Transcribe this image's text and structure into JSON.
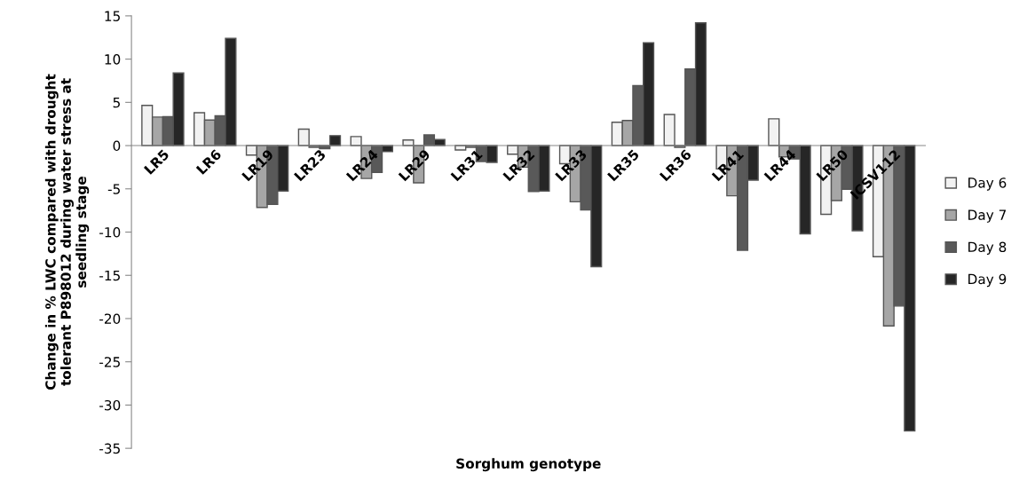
{
  "chart_data": {
    "type": "bar",
    "xlabel": "Sorghum genotype",
    "ylabel": "Change in % LWC compared with drought\ntolerant P898012 during water stress at\nseedling stage",
    "categories": [
      "LR5",
      "LR6",
      "LR19",
      "LR23",
      "LR24",
      "LR29",
      "LR31",
      "LR32",
      "LR33",
      "LR35",
      "LR36",
      "LR41",
      "LR44",
      "LR50",
      "ICSV112"
    ],
    "series": [
      {
        "name": "Day 6",
        "color": "#f2f2f2",
        "values": [
          4.65,
          3.8,
          -1.1,
          1.9,
          1.05,
          0.65,
          -0.5,
          -1.0,
          -2.1,
          2.7,
          3.6,
          -2.7,
          3.1,
          -7.95,
          -12.85
        ]
      },
      {
        "name": "Day 7",
        "color": "#a6a6a6",
        "values": [
          3.3,
          2.95,
          -7.15,
          -0.2,
          -3.8,
          -4.3,
          -0.2,
          -2.5,
          -6.5,
          2.9,
          -0.2,
          -5.8,
          -1.3,
          -6.35,
          -20.85
        ]
      },
      {
        "name": "Day 8",
        "color": "#595959",
        "values": [
          3.35,
          3.45,
          -6.8,
          -0.35,
          -3.1,
          1.25,
          -1.85,
          -5.3,
          -7.45,
          6.95,
          8.85,
          -12.1,
          -1.55,
          -5.05,
          -18.55
        ]
      },
      {
        "name": "Day 9",
        "color": "#262626",
        "values": [
          8.4,
          12.4,
          -5.25,
          1.15,
          -0.7,
          0.7,
          -1.95,
          -5.25,
          -14.0,
          11.9,
          14.2,
          -4.0,
          -10.2,
          -9.85,
          -33.0
        ]
      }
    ],
    "ylim": [
      -35,
      15
    ],
    "yticks": [
      -35,
      -30,
      -25,
      -20,
      -15,
      -10,
      -5,
      0,
      5,
      10,
      15
    ],
    "grid": false,
    "legend": "right"
  }
}
